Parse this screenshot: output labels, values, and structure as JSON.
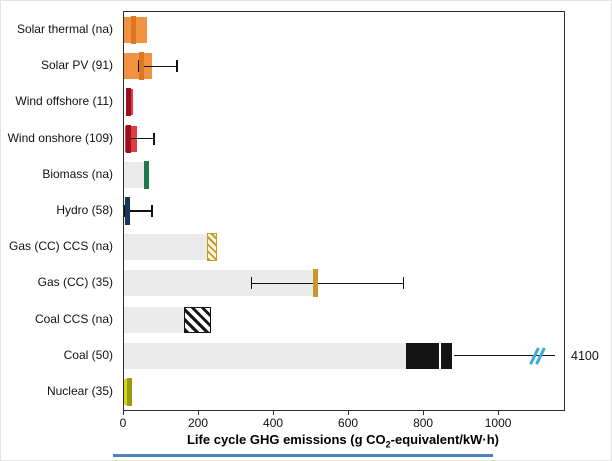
{
  "chart_data": {
    "type": "bar",
    "orientation": "horizontal",
    "title": "",
    "xlabel_parts": {
      "pre": "Life cycle GHG emissions (g CO",
      "sub": "2",
      "post": "-equivalent/kW·h)"
    },
    "xlim": [
      0,
      1173
    ],
    "xticks": [
      0,
      200,
      400,
      600,
      800,
      1000
    ],
    "grid": false,
    "legend": "none",
    "colors": {
      "solar_range": "#f29240",
      "solar_median": "#dd7622",
      "wind_range": "#e03c42",
      "wind_median": "#9c0f1c",
      "gray_range": "#ebebeb",
      "biomass_median": "#1b7a4e",
      "hydro_median": "#17365d",
      "gas_median": "#c59a29",
      "coal_block": "#141414",
      "nuclear_range": "#d9d326",
      "nuclear_median": "#9a9c0e",
      "break_mark": "#3fa9dc",
      "bottom_line": "#4f81bd"
    },
    "rows": [
      {
        "label": "Solar thermal (na)",
        "range": [
          0,
          60
        ],
        "range_color": "#f29240",
        "median": 25,
        "median_color": "#dd7622"
      },
      {
        "label": "Solar PV (91)",
        "range": [
          0,
          75
        ],
        "range_color": "#f29240",
        "median": 46,
        "median_color": "#dd7622",
        "whisker": [
          40,
          141
        ]
      },
      {
        "label": "Wind offshore (11)",
        "range": [
          5,
          25
        ],
        "range_color": "#e03c42",
        "median": 13,
        "median_color": "#9c0f1c"
      },
      {
        "label": "Wind onshore (109)",
        "range": [
          2,
          35
        ],
        "range_color": "#e03c42",
        "median": 11,
        "median_color": "#9c0f1c",
        "whisker": [
          11,
          80
        ]
      },
      {
        "label": "Biomass (na)",
        "range": [
          0,
          57
        ],
        "range_color": "#ebebeb",
        "median": 60,
        "median_color": "#1b7a4e"
      },
      {
        "label": "Hydro (58)",
        "range": [
          0,
          8
        ],
        "range_color": "#ebebeb",
        "median": 10,
        "median_color": "#17365d",
        "whisker": [
          3,
          75
        ]
      },
      {
        "label": "Gas (CC) CCS (na)",
        "range": [
          0,
          225
        ],
        "range_color": "#ebebeb",
        "median": 235,
        "median_color": "#c59a29",
        "median_hatched": true,
        "median_width": 10
      },
      {
        "label": "Gas (CC) (35)",
        "range": [
          0,
          505
        ],
        "range_color": "#ebebeb",
        "median": 510,
        "median_color": "#c59a29",
        "whisker": [
          340,
          745
        ]
      },
      {
        "label": "Coal CCS (na)",
        "range": [
          0,
          160
        ],
        "range_color": "#ebebeb",
        "block": [
          160,
          232
        ],
        "block_hatched": true,
        "block_color": "#141414"
      },
      {
        "label": "Coal (50)",
        "range": [
          0,
          752
        ],
        "range_color": "#ebebeb",
        "block": [
          752,
          874
        ],
        "block_color": "#141414",
        "block_divider": 840,
        "whisker": [
          880,
          1150
        ],
        "caps": false,
        "break_x": 1090,
        "annotation": "4100"
      },
      {
        "label": "Nuclear (35)",
        "range": [
          0,
          20
        ],
        "range_color": "#d9d326",
        "median": 15,
        "median_color": "#9a9c0e"
      }
    ]
  }
}
